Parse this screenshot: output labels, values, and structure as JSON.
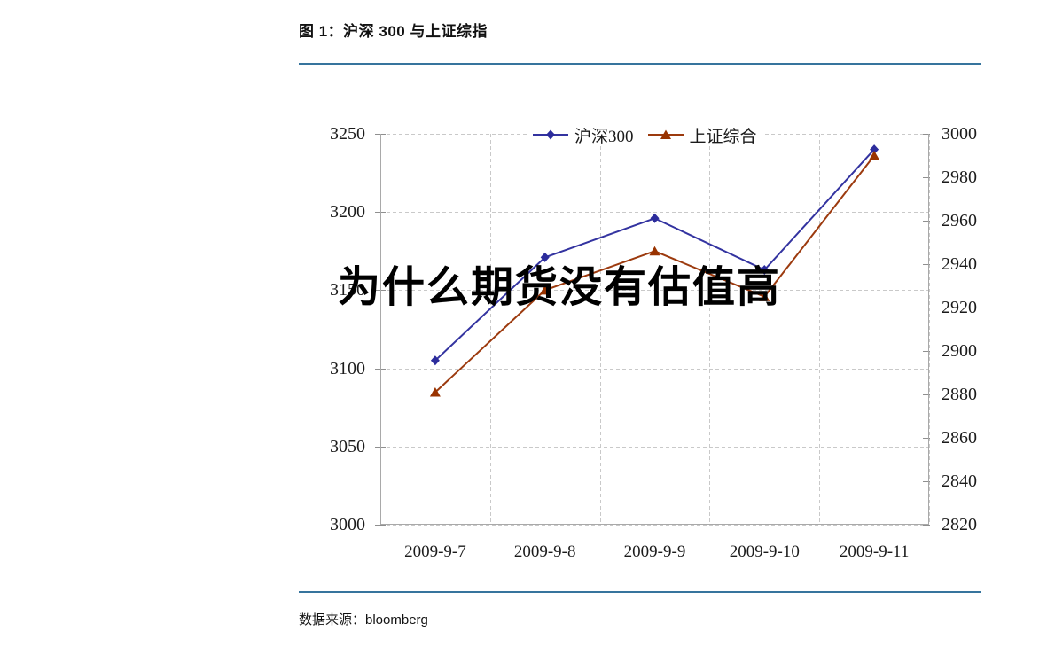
{
  "figure": {
    "title": "图 1：沪深 300 与上证综指",
    "source_label": "数据来源：bloomberg",
    "watermark": "为什么期货没有估值高",
    "divider_color": "#36749d"
  },
  "chart_data": {
    "type": "line",
    "categories": [
      "2009-9-7",
      "2009-9-8",
      "2009-9-9",
      "2009-9-10",
      "2009-9-11"
    ],
    "series": [
      {
        "name": "沪深300",
        "axis": "left",
        "color": "#3333a0",
        "marker": "diamond",
        "marker_color": "#2c2c9c",
        "values": [
          3105,
          3171,
          3196,
          3163,
          3240
        ]
      },
      {
        "name": "上证综合",
        "axis": "right",
        "color": "#9c3a0e",
        "marker": "triangle",
        "marker_color": "#993300",
        "values": [
          2881,
          2928,
          2946,
          2925,
          2990
        ]
      }
    ],
    "left_axis": {
      "min": 3000,
      "max": 3250,
      "step": 50,
      "tick_labels": [
        "3250",
        "3200",
        "3150",
        "3100",
        "3050",
        "3000"
      ]
    },
    "right_axis": {
      "min": 2820,
      "max": 3000,
      "step": 20,
      "tick_labels": [
        "3000",
        "2980",
        "2960",
        "2940",
        "2920",
        "2900",
        "2880",
        "2860",
        "2840",
        "2820"
      ]
    },
    "legend_position": "top-center",
    "grid": {
      "horizontal": true,
      "vertical": true,
      "style": "dashed"
    }
  }
}
